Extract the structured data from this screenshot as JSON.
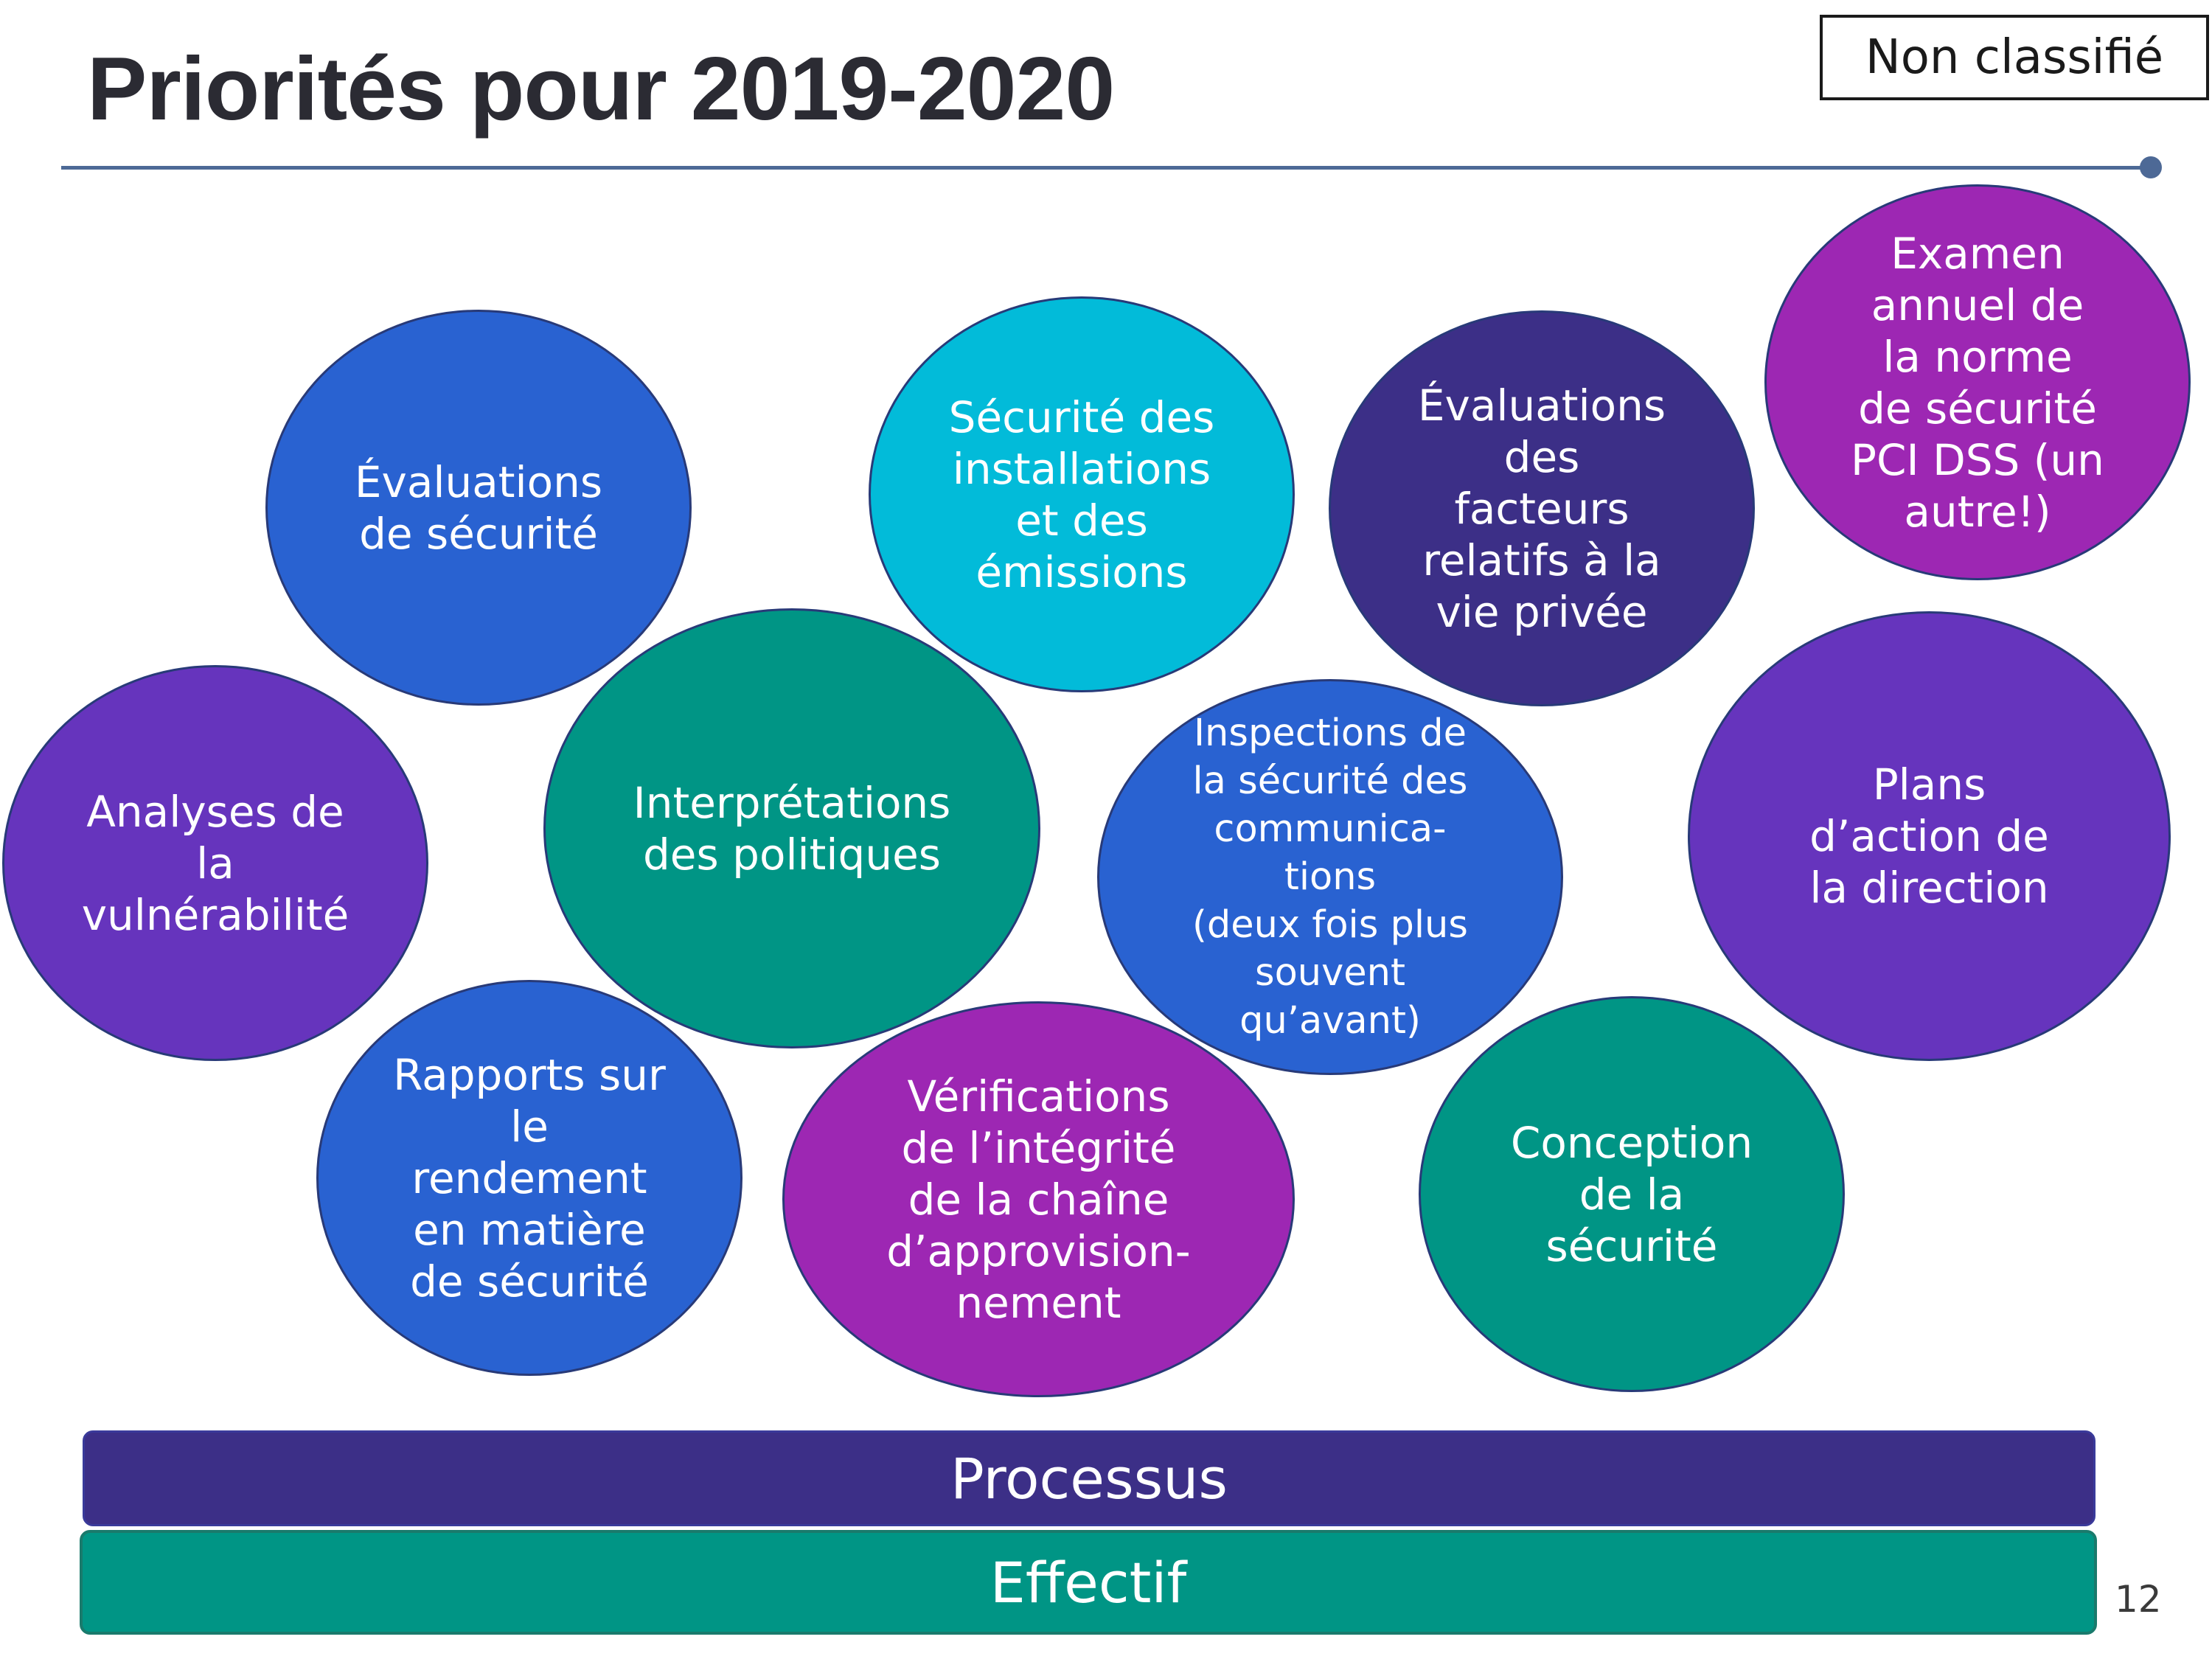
{
  "header": {
    "title": "Priorités pour 2019-2020",
    "classification": "Non classifié"
  },
  "bubbles": [
    {
      "lines": [
        "Évaluations",
        "de sécurité"
      ]
    },
    {
      "lines": [
        "Sécurité des",
        "installations",
        "et des",
        "émissions"
      ]
    },
    {
      "lines": [
        "Évaluations",
        "des",
        "facteurs",
        "relatifs à la",
        "vie privée"
      ]
    },
    {
      "lines": [
        "Examen",
        "annuel de",
        "la norme",
        "de sécurité",
        "PCI DSS (un",
        "autre!)"
      ]
    },
    {
      "lines": [
        "Analyses de",
        "la",
        "vulnérabilité"
      ]
    },
    {
      "lines": [
        "Interprétations",
        "des politiques"
      ]
    },
    {
      "lines": [
        "Inspections de",
        "la sécurité des",
        "communica-",
        "tions",
        "(deux fois plus",
        "souvent",
        "qu’avant)"
      ]
    },
    {
      "lines": [
        "Plans",
        "d’action de",
        "la direction"
      ]
    },
    {
      "lines": [
        "Rapports sur",
        "le",
        "rendement",
        "en matière",
        "de sécurité"
      ]
    },
    {
      "lines": [
        "Vérifications",
        "de l’intégrité",
        "de la chaîne",
        "d’approvision-",
        "nement"
      ]
    },
    {
      "lines": [
        "Conception",
        "de la",
        "sécurité"
      ]
    }
  ],
  "bars": {
    "process": "Processus",
    "effectif": "Effectif"
  },
  "footer": {
    "page_number": "12"
  },
  "colors": {
    "blue": "#2962d1",
    "purple": "#6634bd",
    "teal": "#009585",
    "cyan": "#02bbd9",
    "indigo": "#3c2f87",
    "magenta": "#9d27b3",
    "rule": "#4d6996"
  }
}
